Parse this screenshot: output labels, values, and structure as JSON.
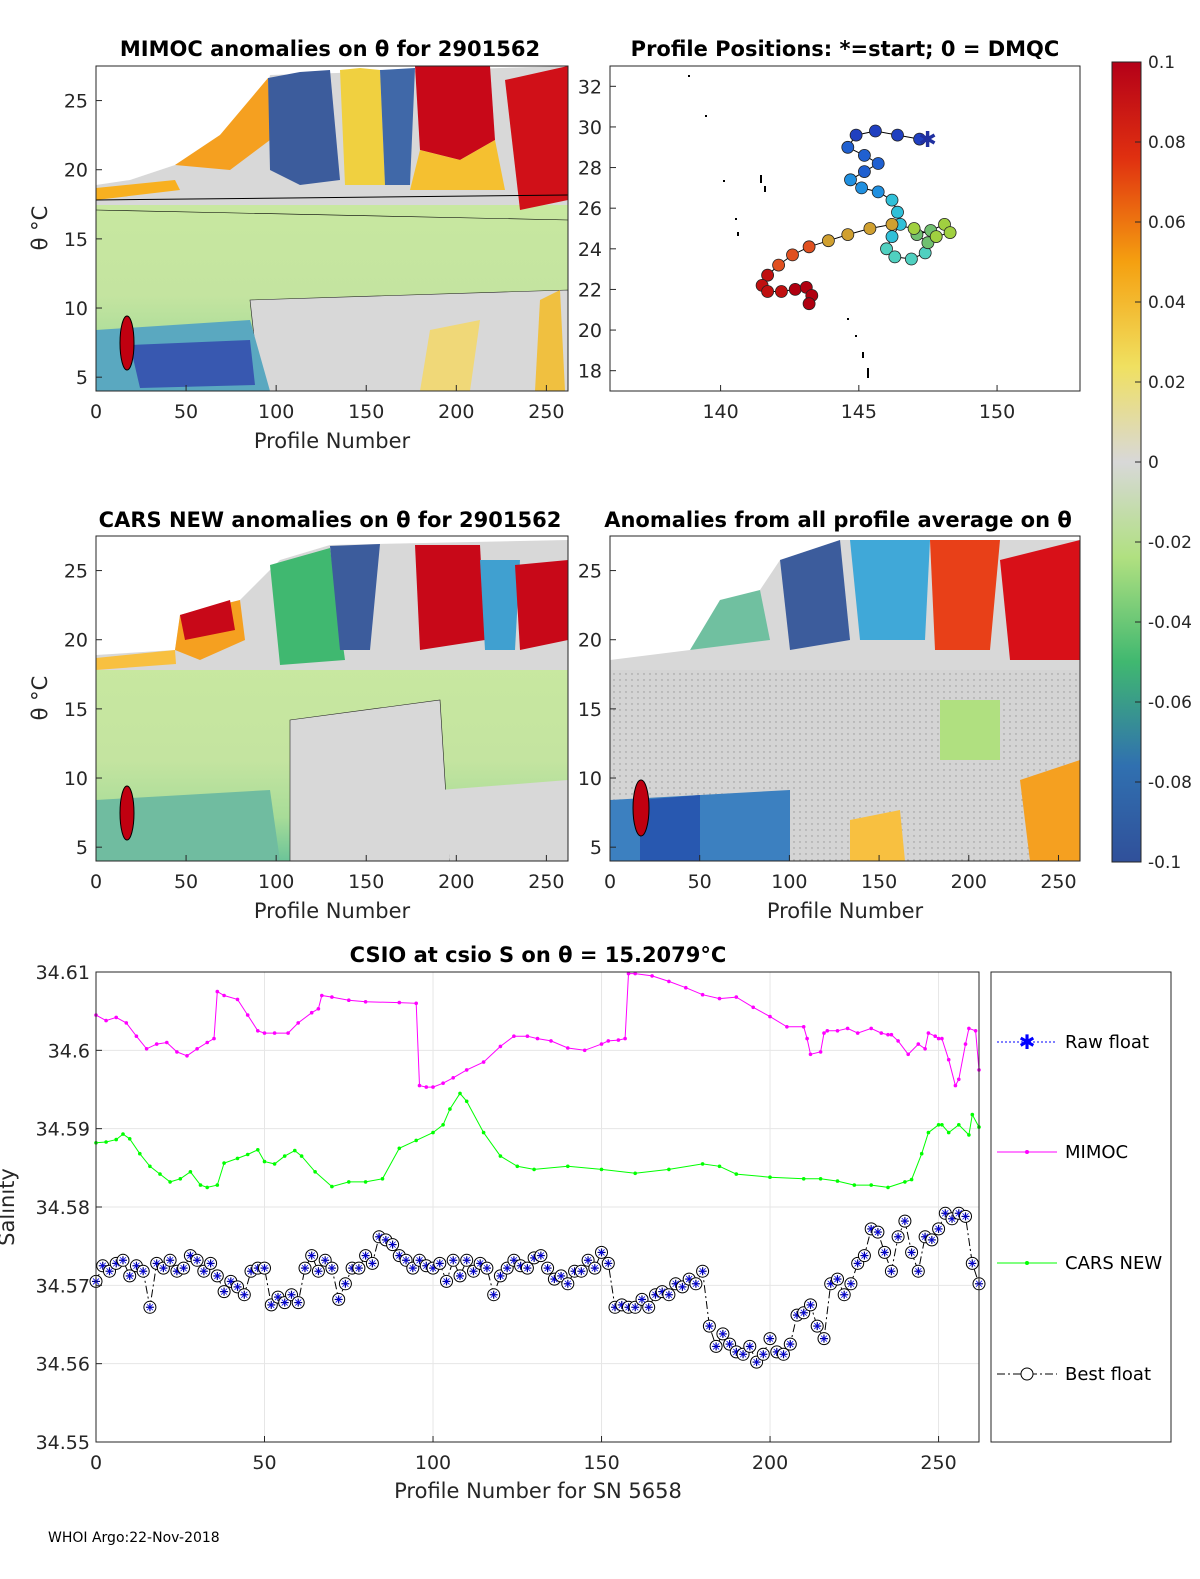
{
  "colors": {
    "mimoc": "#ff00ff",
    "cars": "#00ff00",
    "float": "#000080",
    "raw_float": "#0000ff",
    "warm": "#c00000",
    "cold": "#3050a0"
  },
  "chart_data": [
    {
      "type": "heatmap",
      "title": "MIMOC anomalies on θ  for 2901562",
      "xlabel": "Profile Number",
      "ylabel": "θ °C",
      "xlim": [
        0,
        262
      ],
      "ylim": [
        4,
        27.5
      ],
      "xticks": [
        "0",
        "50",
        "100",
        "150",
        "200",
        "250"
      ],
      "yticks": [
        "5",
        "10",
        "15",
        "20",
        "25"
      ]
    },
    {
      "type": "scatter",
      "title": "Profile Positions: *=start; 0 = DMQC",
      "xlim": [
        136,
        153
      ],
      "ylim": [
        17,
        33
      ],
      "xticks": [
        "140",
        "145",
        "150"
      ],
      "yticks": [
        "18",
        "20",
        "22",
        "24",
        "26",
        "28",
        "30",
        "32"
      ],
      "track": [
        {
          "lon": 147.2,
          "lat": 29.4
        },
        {
          "lon": 146.4,
          "lat": 29.6
        },
        {
          "lon": 145.6,
          "lat": 29.8
        },
        {
          "lon": 144.9,
          "lat": 29.6
        },
        {
          "lon": 144.6,
          "lat": 29.0
        },
        {
          "lon": 145.2,
          "lat": 28.6
        },
        {
          "lon": 145.7,
          "lat": 28.2
        },
        {
          "lon": 145.2,
          "lat": 27.8
        },
        {
          "lon": 144.7,
          "lat": 27.4
        },
        {
          "lon": 145.1,
          "lat": 27.0
        },
        {
          "lon": 145.7,
          "lat": 26.8
        },
        {
          "lon": 146.2,
          "lat": 26.4
        },
        {
          "lon": 146.4,
          "lat": 25.8
        },
        {
          "lon": 146.5,
          "lat": 25.2
        },
        {
          "lon": 146.2,
          "lat": 24.6
        },
        {
          "lon": 146.0,
          "lat": 24.0
        },
        {
          "lon": 146.3,
          "lat": 23.6
        },
        {
          "lon": 146.9,
          "lat": 23.5
        },
        {
          "lon": 147.4,
          "lat": 23.8
        },
        {
          "lon": 147.5,
          "lat": 24.3
        },
        {
          "lon": 147.1,
          "lat": 24.7
        },
        {
          "lon": 147.6,
          "lat": 24.9
        },
        {
          "lon": 148.1,
          "lat": 25.2
        },
        {
          "lon": 148.3,
          "lat": 24.8
        },
        {
          "lon": 147.8,
          "lat": 24.6
        },
        {
          "lon": 147.0,
          "lat": 25.0
        },
        {
          "lon": 146.2,
          "lat": 25.2
        },
        {
          "lon": 145.4,
          "lat": 25.0
        },
        {
          "lon": 144.6,
          "lat": 24.7
        },
        {
          "lon": 143.9,
          "lat": 24.4
        },
        {
          "lon": 143.2,
          "lat": 24.1
        },
        {
          "lon": 142.6,
          "lat": 23.7
        },
        {
          "lon": 142.1,
          "lat": 23.2
        },
        {
          "lon": 141.7,
          "lat": 22.7
        },
        {
          "lon": 141.5,
          "lat": 22.2
        },
        {
          "lon": 141.7,
          "lat": 21.9
        },
        {
          "lon": 142.2,
          "lat": 21.9
        },
        {
          "lon": 142.7,
          "lat": 22.0
        },
        {
          "lon": 143.1,
          "lat": 22.1
        },
        {
          "lon": 143.3,
          "lat": 21.7
        },
        {
          "lon": 143.2,
          "lat": 21.3
        }
      ],
      "colorbar": {
        "ticks": [
          "0.1",
          "0.08",
          "0.06",
          "0.04",
          "0.02",
          "0",
          "-0.02",
          "-0.04",
          "-0.06",
          "-0.08",
          "-0.1"
        ],
        "range": [
          -0.1,
          0.1
        ]
      }
    },
    {
      "type": "heatmap",
      "title": "CARS NEW anomalies on θ for 2901562",
      "xlabel": "Profile Number",
      "ylabel": "θ °C",
      "xlim": [
        0,
        262
      ],
      "ylim": [
        4,
        27.5
      ],
      "xticks": [
        "0",
        "50",
        "100",
        "150",
        "200",
        "250"
      ],
      "yticks": [
        "5",
        "10",
        "15",
        "20",
        "25"
      ]
    },
    {
      "type": "heatmap",
      "title": "Anomalies from all profile average on θ",
      "xlabel": "Profile Number",
      "xlim": [
        0,
        262
      ],
      "ylim": [
        4,
        27.5
      ],
      "xticks": [
        "0",
        "50",
        "100",
        "150",
        "200",
        "250"
      ],
      "yticks": [
        "5",
        "10",
        "15",
        "20",
        "25"
      ]
    },
    {
      "type": "line",
      "title": "CSIO at csio S on θ = 15.2079°C",
      "xlabel": "Profile Number for SN 5658",
      "ylabel": "Salinity",
      "xlim": [
        0,
        262
      ],
      "ylim": [
        34.55,
        34.61
      ],
      "xticks": [
        "0",
        "50",
        "100",
        "150",
        "200",
        "250"
      ],
      "yticks": [
        "34.55",
        "34.56",
        "34.57",
        "34.58",
        "34.59",
        "34.6",
        "34.61"
      ],
      "series": [
        {
          "name": "MIMOC",
          "x": [
            0,
            3,
            6,
            9,
            12,
            15,
            18,
            21,
            24,
            27,
            30,
            33,
            35,
            36,
            38,
            42,
            45,
            48,
            50,
            53,
            57,
            60,
            64,
            66,
            67,
            70,
            75,
            80,
            90,
            95,
            96,
            98,
            100,
            103,
            106,
            110,
            115,
            120,
            124,
            128,
            131,
            135,
            140,
            145,
            150,
            152,
            155,
            157,
            158,
            160,
            165,
            170,
            175,
            180,
            185,
            190,
            195,
            200,
            205,
            210,
            211,
            212,
            215,
            216,
            217,
            220,
            223,
            226,
            230,
            233,
            235,
            236,
            238,
            241,
            244,
            246,
            247,
            249,
            250,
            251,
            253,
            255,
            256,
            258,
            259,
            261,
            262
          ],
          "y": [
            34.6045,
            34.6038,
            34.6042,
            34.6035,
            34.6018,
            34.6002,
            34.6008,
            34.601,
            34.5998,
            34.5993,
            34.6002,
            34.601,
            34.6015,
            34.6075,
            34.607,
            34.6065,
            34.6045,
            34.6025,
            34.6022,
            34.6022,
            34.6022,
            34.6035,
            34.6048,
            34.6053,
            34.607,
            34.6068,
            34.6064,
            34.6062,
            34.6061,
            34.606,
            34.5955,
            34.5953,
            34.5953,
            34.5958,
            34.5965,
            34.5975,
            34.5985,
            34.6005,
            34.6018,
            34.6018,
            34.6015,
            34.6012,
            34.6003,
            34.6,
            34.6008,
            34.6012,
            34.6013,
            34.6015,
            34.6098,
            34.6098,
            34.6095,
            34.6088,
            34.608,
            34.6071,
            34.6066,
            34.6068,
            34.6055,
            34.6043,
            34.603,
            34.603,
            34.6015,
            34.5995,
            34.5998,
            34.6022,
            34.6025,
            34.6025,
            34.6028,
            34.6022,
            34.6028,
            34.6022,
            34.602,
            34.602,
            34.6012,
            34.5995,
            34.6008,
            34.6002,
            34.6022,
            34.6018,
            34.6015,
            34.6015,
            34.5988,
            34.5955,
            34.5963,
            34.6008,
            34.6028,
            34.6025,
            34.5975
          ]
        },
        {
          "name": "CARS NEW",
          "x": [
            0,
            3,
            6,
            8,
            10,
            13,
            16,
            19,
            22,
            25,
            28,
            31,
            33,
            36,
            38,
            42,
            45,
            48,
            50,
            53,
            56,
            59,
            61,
            65,
            70,
            75,
            80,
            85,
            90,
            95,
            100,
            103,
            105,
            108,
            110,
            115,
            120,
            125,
            130,
            140,
            150,
            160,
            170,
            180,
            185,
            190,
            200,
            210,
            215,
            220,
            225,
            230,
            235,
            240,
            242,
            245,
            247,
            250,
            251,
            253,
            256,
            259,
            260,
            262
          ],
          "y": [
            34.5882,
            34.5883,
            34.5886,
            34.5893,
            34.5887,
            34.5868,
            34.5852,
            34.5842,
            34.5832,
            34.5836,
            34.5845,
            34.5828,
            34.5825,
            34.5828,
            34.5856,
            34.5862,
            34.5867,
            34.5873,
            34.5858,
            34.5855,
            34.5865,
            34.5872,
            34.5865,
            34.5845,
            34.5826,
            34.5832,
            34.5832,
            34.5836,
            34.5875,
            34.5885,
            34.5895,
            34.5905,
            34.5925,
            34.5945,
            34.5935,
            34.5895,
            34.5865,
            34.5852,
            34.5848,
            34.5852,
            34.5848,
            34.5843,
            34.5848,
            34.5855,
            34.5852,
            34.5842,
            34.5838,
            34.5836,
            34.5836,
            34.5833,
            34.5828,
            34.5828,
            34.5825,
            34.5832,
            34.5835,
            34.5868,
            34.5895,
            34.5905,
            34.5905,
            34.5895,
            34.5905,
            34.5892,
            34.5918,
            34.5902
          ]
        },
        {
          "name": "Best float",
          "x": [
            0,
            2,
            4,
            6,
            8,
            10,
            12,
            14,
            16,
            18,
            20,
            22,
            24,
            26,
            28,
            30,
            32,
            34,
            36,
            38,
            40,
            42,
            44,
            46,
            48,
            50,
            52,
            54,
            56,
            58,
            60,
            62,
            64,
            66,
            68,
            70,
            72,
            74,
            76,
            78,
            80,
            82,
            84,
            86,
            88,
            90,
            92,
            94,
            96,
            98,
            100,
            102,
            104,
            106,
            108,
            110,
            112,
            114,
            116,
            118,
            120,
            122,
            124,
            126,
            128,
            130,
            132,
            134,
            136,
            138,
            140,
            142,
            144,
            146,
            148,
            150,
            152,
            154,
            156,
            158,
            160,
            162,
            164,
            166,
            168,
            170,
            172,
            174,
            176,
            178,
            180,
            182,
            184,
            186,
            188,
            190,
            192,
            194,
            196,
            198,
            200,
            202,
            204,
            206,
            208,
            210,
            212,
            214,
            216,
            218,
            220,
            222,
            224,
            226,
            228,
            230,
            232,
            234,
            236,
            238,
            240,
            242,
            244,
            246,
            248,
            250,
            252,
            254,
            256,
            258,
            260,
            262
          ],
          "y": [
            34.5705,
            34.5725,
            34.5718,
            34.5728,
            34.5732,
            34.5712,
            34.5725,
            34.5718,
            34.5672,
            34.5728,
            34.5722,
            34.5732,
            34.5718,
            34.5722,
            34.5738,
            34.5732,
            34.5718,
            34.5728,
            34.5712,
            34.5692,
            34.5705,
            34.5698,
            34.5688,
            34.5718,
            34.5722,
            34.5722,
            34.5675,
            34.5685,
            34.5678,
            34.5688,
            34.5678,
            34.5722,
            34.5738,
            34.5718,
            34.5732,
            34.5722,
            34.5682,
            34.5702,
            34.5722,
            34.5722,
            34.5738,
            34.5728,
            34.5762,
            34.5758,
            34.5752,
            34.5738,
            34.5732,
            34.5722,
            34.5732,
            34.5725,
            34.5722,
            34.5728,
            34.5705,
            34.5732,
            34.5712,
            34.5732,
            34.5718,
            34.5728,
            34.5722,
            34.5688,
            34.5712,
            34.5722,
            34.5732,
            34.5725,
            34.5722,
            34.5735,
            34.5738,
            34.5722,
            34.5708,
            34.5712,
            34.5702,
            34.5718,
            34.5718,
            34.5732,
            34.5722,
            34.5742,
            34.5728,
            34.5672,
            34.5675,
            34.5672,
            34.5672,
            34.5682,
            34.5672,
            34.5688,
            34.5692,
            34.5688,
            34.5702,
            34.5698,
            34.5708,
            34.5702,
            34.5718,
            34.5648,
            34.5622,
            34.5638,
            34.5625,
            34.5615,
            34.5612,
            34.5622,
            34.5602,
            34.5612,
            34.5632,
            34.5615,
            34.5612,
            34.5625,
            34.5662,
            34.5665,
            34.5675,
            34.5648,
            34.5632,
            34.5702,
            34.5708,
            34.5688,
            34.5702,
            34.5728,
            34.5738,
            34.5772,
            34.5768,
            34.5742,
            34.5718,
            34.5762,
            34.5782,
            34.5742,
            34.5718,
            34.5762,
            34.5758,
            34.5772,
            34.5792,
            34.5785,
            34.5792,
            34.5788,
            34.5728,
            34.5702
          ]
        },
        {
          "name": "Raw float"
        }
      ],
      "legend": [
        {
          "key": "raw",
          "label": "Raw float"
        },
        {
          "key": "mimoc",
          "label": "MIMOC"
        },
        {
          "key": "cars",
          "label": "CARS NEW"
        },
        {
          "key": "best",
          "label": "Best float"
        }
      ]
    }
  ],
  "footer": "WHOI Argo:22-Nov-2018"
}
